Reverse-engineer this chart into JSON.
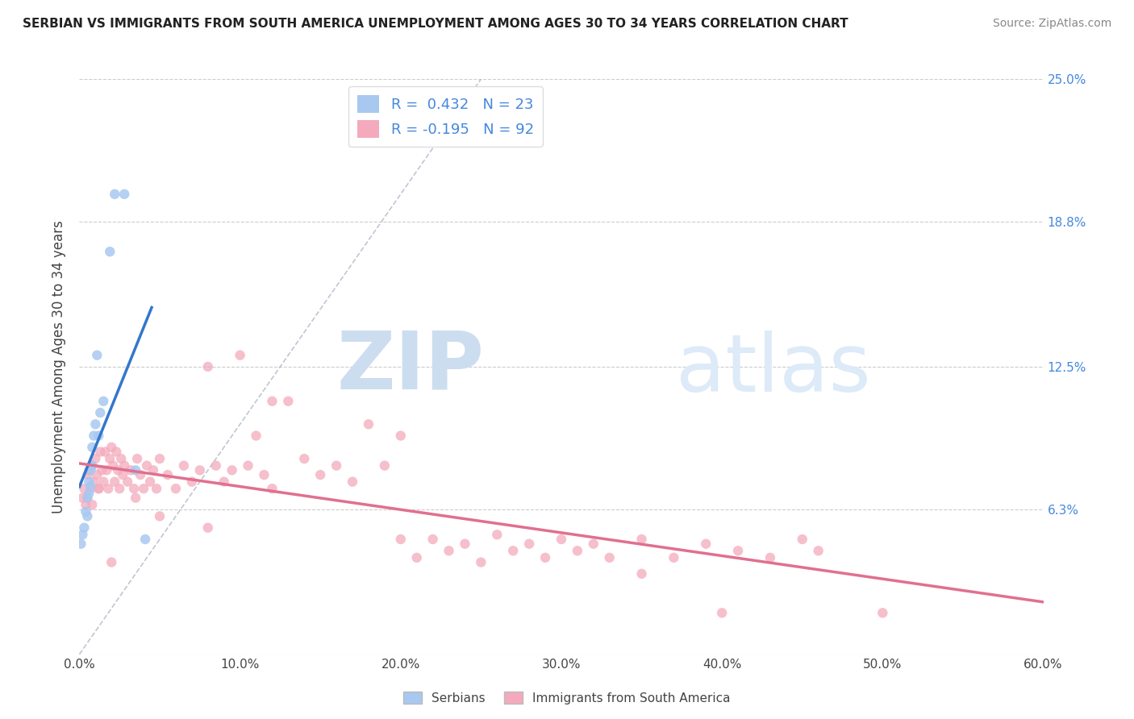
{
  "title": "SERBIAN VS IMMIGRANTS FROM SOUTH AMERICA UNEMPLOYMENT AMONG AGES 30 TO 34 YEARS CORRELATION CHART",
  "source": "Source: ZipAtlas.com",
  "ylabel": "Unemployment Among Ages 30 to 34 years",
  "xmin": 0.0,
  "xmax": 0.6,
  "ymin": 0.0,
  "ymax": 0.25,
  "yticks": [
    0.0,
    0.063,
    0.125,
    0.188,
    0.25
  ],
  "ytick_labels": [
    "",
    "6.3%",
    "12.5%",
    "18.8%",
    "25.0%"
  ],
  "xtick_vals": [
    0.0,
    0.1,
    0.2,
    0.3,
    0.4,
    0.5,
    0.6
  ],
  "xtick_labels": [
    "0.0%",
    "10.0%",
    "20.0%",
    "30.0%",
    "40.0%",
    "50.0%",
    "60.0%"
  ],
  "serbian_R": 0.432,
  "serbian_N": 23,
  "immigrant_R": -0.195,
  "immigrant_N": 92,
  "serbian_color": "#a8c8f0",
  "serbian_line_color": "#3377cc",
  "immigrant_color": "#f4aabc",
  "immigrant_line_color": "#e07090",
  "diagonal_color": "#b0b8c8",
  "background_color": "#ffffff",
  "grid_color": "#cccccc",
  "label_color": "#4488dd",
  "text_color": "#444444",
  "s_x": [
    0.001,
    0.002,
    0.003,
    0.004,
    0.005,
    0.005,
    0.006,
    0.006,
    0.007,
    0.007,
    0.008,
    0.008,
    0.009,
    0.01,
    0.011,
    0.012,
    0.013,
    0.015,
    0.019,
    0.022,
    0.028,
    0.035,
    0.041
  ],
  "s_y": [
    0.048,
    0.052,
    0.055,
    0.062,
    0.06,
    0.068,
    0.07,
    0.075,
    0.073,
    0.08,
    0.082,
    0.09,
    0.095,
    0.1,
    0.13,
    0.095,
    0.105,
    0.11,
    0.175,
    0.2,
    0.2,
    0.08,
    0.05
  ],
  "i_x": [
    0.002,
    0.003,
    0.004,
    0.005,
    0.006,
    0.007,
    0.008,
    0.009,
    0.01,
    0.011,
    0.012,
    0.013,
    0.014,
    0.015,
    0.016,
    0.017,
    0.018,
    0.019,
    0.02,
    0.021,
    0.022,
    0.023,
    0.024,
    0.025,
    0.026,
    0.027,
    0.028,
    0.03,
    0.032,
    0.034,
    0.036,
    0.038,
    0.04,
    0.042,
    0.044,
    0.046,
    0.048,
    0.05,
    0.055,
    0.06,
    0.065,
    0.07,
    0.075,
    0.08,
    0.085,
    0.09,
    0.095,
    0.1,
    0.105,
    0.11,
    0.115,
    0.12,
    0.13,
    0.14,
    0.15,
    0.16,
    0.17,
    0.18,
    0.19,
    0.2,
    0.21,
    0.22,
    0.23,
    0.24,
    0.25,
    0.26,
    0.27,
    0.28,
    0.29,
    0.3,
    0.31,
    0.32,
    0.33,
    0.35,
    0.37,
    0.39,
    0.41,
    0.43,
    0.45,
    0.46,
    0.005,
    0.008,
    0.012,
    0.02,
    0.035,
    0.05,
    0.08,
    0.12,
    0.2,
    0.35,
    0.4,
    0.5
  ],
  "i_y": [
    0.068,
    0.072,
    0.065,
    0.078,
    0.08,
    0.072,
    0.082,
    0.075,
    0.085,
    0.078,
    0.072,
    0.088,
    0.08,
    0.075,
    0.088,
    0.08,
    0.072,
    0.085,
    0.09,
    0.082,
    0.075,
    0.088,
    0.08,
    0.072,
    0.085,
    0.078,
    0.082,
    0.075,
    0.08,
    0.072,
    0.085,
    0.078,
    0.072,
    0.082,
    0.075,
    0.08,
    0.072,
    0.085,
    0.078,
    0.072,
    0.082,
    0.075,
    0.08,
    0.125,
    0.082,
    0.075,
    0.08,
    0.13,
    0.082,
    0.095,
    0.078,
    0.072,
    0.11,
    0.085,
    0.078,
    0.082,
    0.075,
    0.1,
    0.082,
    0.095,
    0.042,
    0.05,
    0.045,
    0.048,
    0.04,
    0.052,
    0.045,
    0.048,
    0.042,
    0.05,
    0.045,
    0.048,
    0.042,
    0.05,
    0.042,
    0.048,
    0.045,
    0.042,
    0.05,
    0.045,
    0.068,
    0.065,
    0.072,
    0.04,
    0.068,
    0.06,
    0.055,
    0.11,
    0.05,
    0.035,
    0.018,
    0.018
  ]
}
